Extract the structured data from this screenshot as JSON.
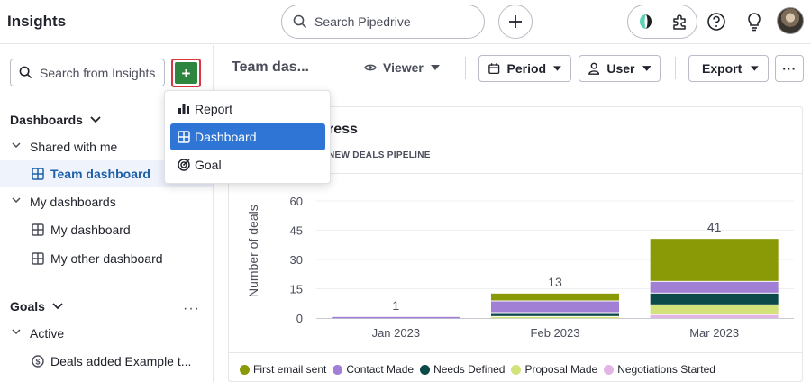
{
  "app": {
    "title": "Insights"
  },
  "topbar": {
    "search_placeholder": "Search Pipedrive",
    "icons": [
      "search-icon",
      "plus-icon",
      "extension-logo-icon",
      "puzzle-icon",
      "help-icon",
      "lightbulb-icon",
      "avatar"
    ]
  },
  "sidebar": {
    "search_placeholder": "Search from Insights",
    "add_label": "+",
    "dashboards_heading": "Dashboards",
    "shared_with_me": "Shared with me",
    "team_dashboard": "Team dashboard",
    "my_dashboards": "My dashboards",
    "my_dashboard": "My dashboard",
    "my_other_dashboard": "My other dashboard",
    "goals_heading": "Goals",
    "goals_more": "···",
    "active": "Active",
    "goal_item": "Deals added Example t..."
  },
  "header": {
    "title": "Team das...",
    "viewer": "Viewer",
    "period": "Period",
    "user": "User",
    "export": "Export",
    "more": "···"
  },
  "dropdown": {
    "items": [
      {
        "label": "Report",
        "icon": "bar-chart-icon",
        "selected": false
      },
      {
        "label": "Dashboard",
        "icon": "dashboard-icon",
        "selected": true
      },
      {
        "label": "Goal",
        "icon": "target-icon",
        "selected": false
      }
    ]
  },
  "card": {
    "title_visible": "ress",
    "subtitle_visible": "NEW DEALS PIPELINE"
  },
  "colors": {
    "accent_green": "#2e8540",
    "selected_blue": "#2f75d6",
    "highlight_red": "#d9363e"
  },
  "chart_data": {
    "type": "bar",
    "stacked": true,
    "categories": [
      "Jan 2023",
      "Feb 2023",
      "Mar 2023"
    ],
    "ylabel": "Number of deals",
    "ylim": [
      0,
      60
    ],
    "yticks": [
      0,
      15,
      30,
      45,
      60
    ],
    "totals": [
      1,
      13,
      41
    ],
    "series": [
      {
        "name": "Negotiations Started",
        "color": "#e3b5e6",
        "values": [
          0,
          0,
          2
        ]
      },
      {
        "name": "Proposal Made",
        "color": "#d3e27a",
        "values": [
          0,
          1,
          5
        ]
      },
      {
        "name": "Needs Defined",
        "color": "#0c4a4a",
        "values": [
          0,
          2,
          6
        ]
      },
      {
        "name": "Contact Made",
        "color": "#a17fd4",
        "values": [
          1,
          6,
          6
        ]
      },
      {
        "name": "First email sent",
        "color": "#8a9a07",
        "values": [
          0,
          4,
          22
        ]
      }
    ],
    "legend_order": [
      "First email sent",
      "Contact Made",
      "Needs Defined",
      "Proposal Made",
      "Negotiations Started"
    ],
    "legend_position": "bottom",
    "grid": true
  }
}
